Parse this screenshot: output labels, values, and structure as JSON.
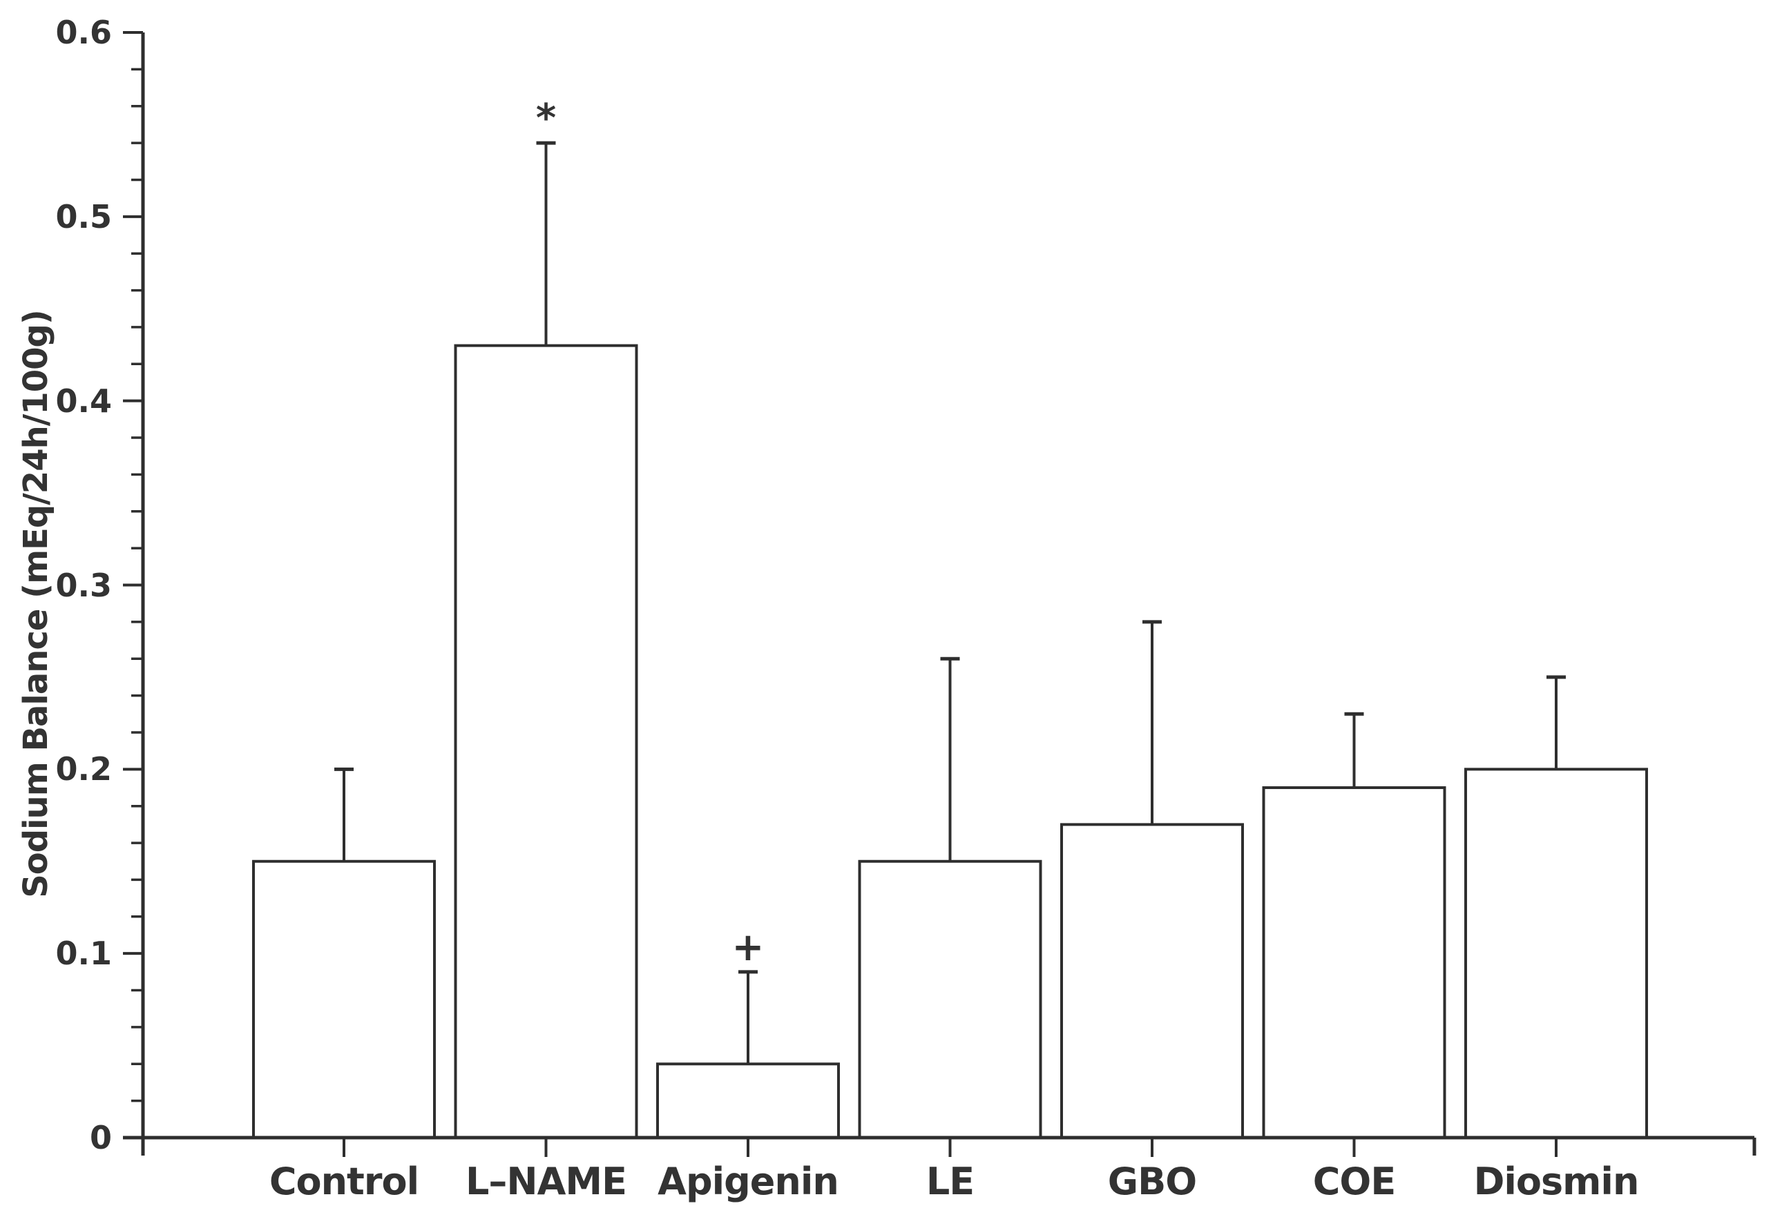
{
  "chart_data": {
    "type": "bar",
    "title": "",
    "xlabel": "",
    "ylabel": "Sodium Balance (mEq/24h/100g)",
    "categories": [
      "Control",
      "L–NAME",
      "Apigenin",
      "LE",
      "GBO",
      "COE",
      "Diosmin"
    ],
    "values": [
      0.15,
      0.43,
      0.04,
      0.15,
      0.17,
      0.19,
      0.2
    ],
    "error_upper": [
      0.05,
      0.11,
      0.05,
      0.11,
      0.11,
      0.04,
      0.05
    ],
    "error_caps_reach": [
      0.2,
      0.54,
      0.09,
      0.26,
      0.28,
      0.23,
      0.25
    ],
    "annotations": [
      {
        "category_index": 1,
        "symbol": "*"
      },
      {
        "category_index": 2,
        "symbol": "+"
      }
    ],
    "ylim": [
      0,
      0.6
    ],
    "yticks": [
      0,
      0.1,
      0.2,
      0.3,
      0.4,
      0.5,
      0.6
    ],
    "ytick_labels": [
      "0",
      "0.1",
      "0.2",
      "0.3",
      "0.4",
      "0.5",
      "0.6"
    ],
    "minor_tick_step": 0.02,
    "grid": false,
    "legend": false,
    "bar_fill": "#ffffff",
    "bar_stroke": "#2e2e2e",
    "axis_color": "#2e2e2e",
    "text_color": "#333333"
  }
}
